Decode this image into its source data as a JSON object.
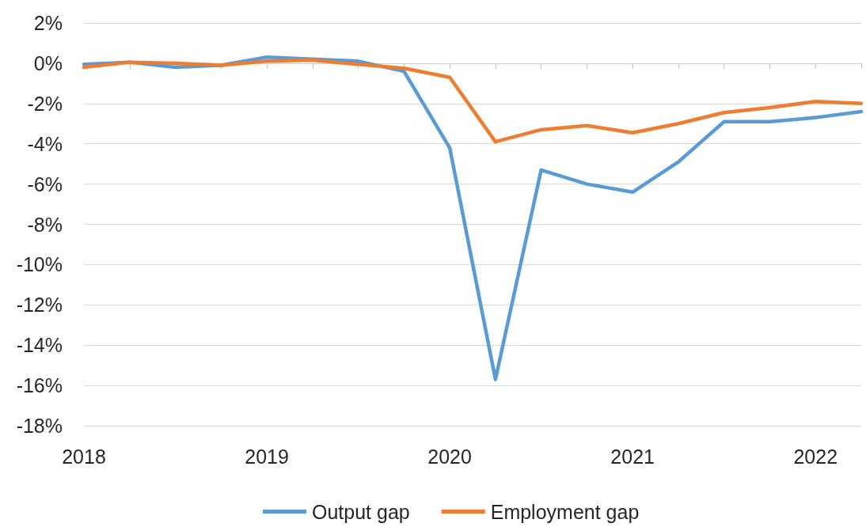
{
  "chart_data": {
    "type": "line",
    "categories": [
      "2018",
      null,
      null,
      null,
      "2019",
      null,
      null,
      null,
      "2020",
      null,
      null,
      null,
      "2021",
      null,
      null,
      null,
      "2022",
      null
    ],
    "series": [
      {
        "name": "Output gap",
        "color": "#5b9bd5",
        "values": [
          -0.05,
          0.05,
          -0.2,
          -0.1,
          0.3,
          0.2,
          0.1,
          -0.4,
          -4.2,
          -15.7,
          -5.3,
          -6.0,
          -6.4,
          -4.9,
          -2.9,
          -2.9,
          -2.7,
          -2.4
        ]
      },
      {
        "name": "Employment gap",
        "color": "#ed7d31",
        "values": [
          -0.2,
          0.05,
          0.0,
          -0.1,
          0.1,
          0.15,
          -0.05,
          -0.25,
          -0.7,
          -3.9,
          -3.3,
          -3.1,
          -3.45,
          -3.0,
          -2.45,
          -2.2,
          -1.9,
          -2.0
        ]
      }
    ],
    "ylim": [
      -18,
      2
    ],
    "yticks": [
      {
        "value": -18,
        "label": "-18%"
      },
      {
        "value": -16,
        "label": "-16%"
      },
      {
        "value": -14,
        "label": "-14%"
      },
      {
        "value": -12,
        "label": "-12%"
      },
      {
        "value": -10,
        "label": "-10%"
      },
      {
        "value": -8,
        "label": "-8%"
      },
      {
        "value": -6,
        "label": "-6%"
      },
      {
        "value": -4,
        "label": "-4%"
      },
      {
        "value": -2,
        "label": "-2%"
      },
      {
        "value": 0,
        "label": "0%"
      },
      {
        "value": 2,
        "label": "2%"
      }
    ],
    "grid": "y",
    "legend": "bottom",
    "marker": "none",
    "line_style": "solid"
  }
}
